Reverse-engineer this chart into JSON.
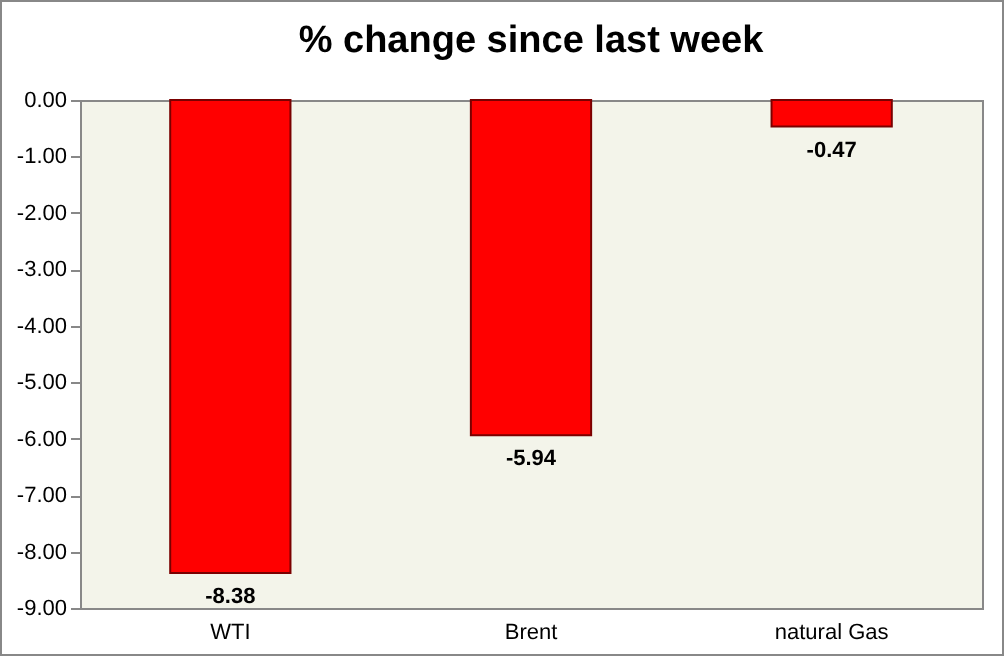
{
  "chart_data": {
    "type": "bar",
    "title": "% change since last week",
    "categories": [
      "WTI",
      "Brent",
      "natural Gas"
    ],
    "values": [
      -8.38,
      -5.94,
      -0.47
    ],
    "color": "#ff0000",
    "ylim": [
      -9,
      0
    ],
    "yticks": [
      {
        "value": 0,
        "label": "0.00"
      },
      {
        "value": -1,
        "label": "-1.00"
      },
      {
        "value": -2,
        "label": "-2.00"
      },
      {
        "value": -3,
        "label": "-3.00"
      },
      {
        "value": -4,
        "label": "-4.00"
      },
      {
        "value": -5,
        "label": "-5.00"
      },
      {
        "value": -6,
        "label": "-6.00"
      },
      {
        "value": -7,
        "label": "-7.00"
      },
      {
        "value": -8,
        "label": "-8.00"
      },
      {
        "value": -9,
        "label": "-9.00"
      }
    ],
    "data_labels": true,
    "grid": false
  }
}
